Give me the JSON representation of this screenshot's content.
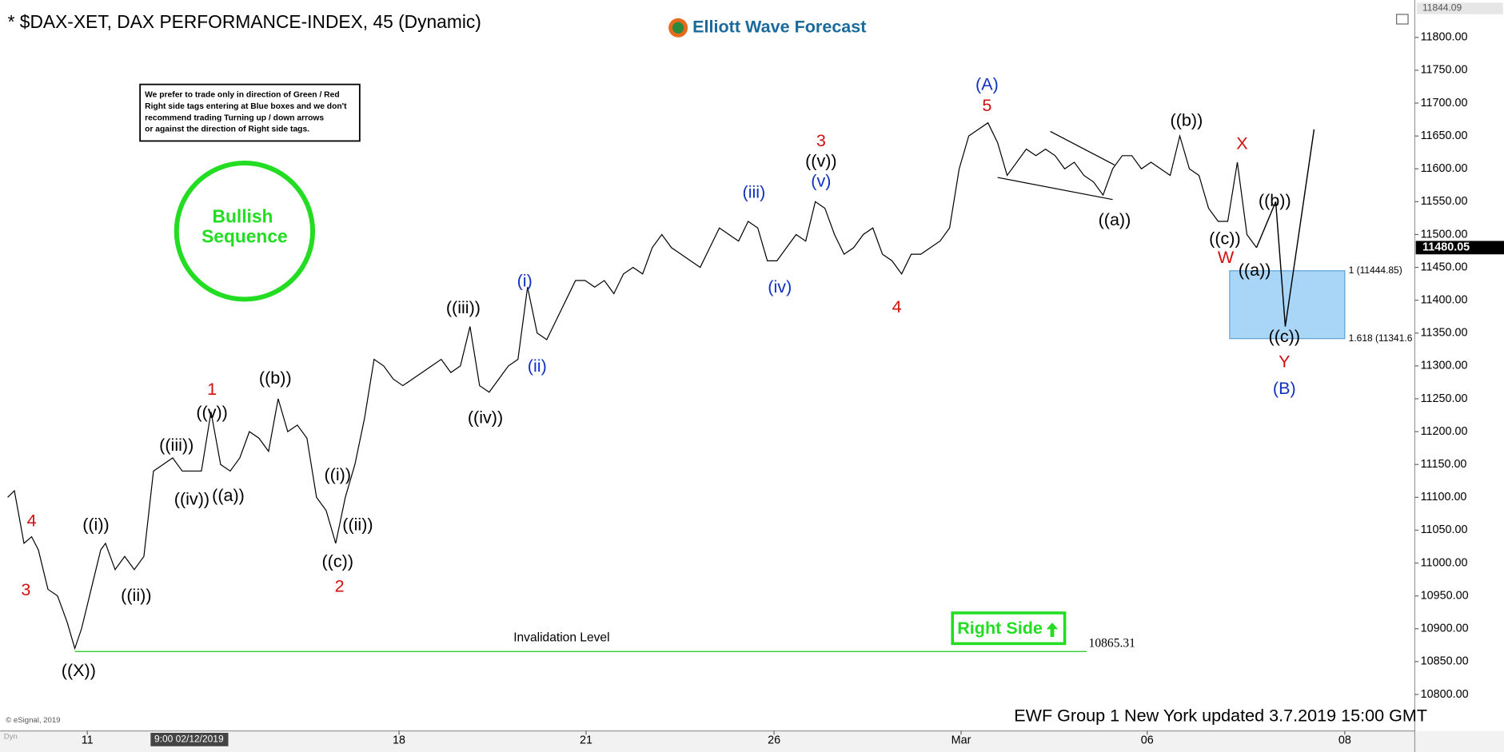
{
  "chart_data": {
    "type": "line",
    "title": "* $DAX-XET, DAX PERFORMANCE-INDEX, 45 (Dynamic)",
    "logo": "Elliott Wave Forecast",
    "note": [
      "We prefer to trade only in direction of Green / Red",
      "Right side tags entering at Blue boxes and we don't",
      "recommend trading Turning up / down arrows",
      "or against the direction of Right side tags."
    ],
    "badge": [
      "Bullish",
      "Sequence"
    ],
    "right_side": "Right Side",
    "footer": "EWF Group 1 New York updated 3.7.2019 15:00 GMT",
    "copyright": "© eSignal, 2019",
    "cursor_time": "9:00 02/12/2019",
    "mode": "Dyn",
    "color": "#000000",
    "x": [
      0.8,
      1.5,
      2.5,
      3.3,
      4,
      5,
      6,
      7,
      7.8,
      8.5,
      9.5,
      10.5,
      11,
      12,
      13,
      14,
      15,
      16,
      17,
      18,
      19,
      20,
      21,
      22,
      23,
      24,
      25,
      26,
      27,
      28,
      29,
      30,
      31,
      32,
      33,
      34,
      35,
      36,
      37,
      38,
      39,
      40,
      41,
      42,
      43,
      44,
      45,
      46,
      47,
      48,
      49,
      50,
      51,
      52,
      53,
      54,
      55,
      56,
      57,
      58,
      59,
      60,
      61,
      62,
      63,
      64,
      65,
      66,
      67,
      68,
      69,
      70,
      71,
      72,
      73,
      74,
      75,
      76,
      77,
      78,
      79,
      80,
      81,
      82,
      83,
      84,
      85,
      86,
      87,
      88,
      89,
      90,
      91,
      92,
      93,
      94,
      95,
      96,
      97,
      98,
      99,
      100,
      101,
      102,
      103,
      104,
      105,
      106,
      107,
      108,
      109,
      110,
      111,
      112,
      113,
      114,
      115,
      116,
      117,
      118,
      119,
      120,
      121,
      122,
      123,
      124,
      125,
      126,
      127,
      128,
      129,
      130,
      131
    ],
    "values": [
      11100,
      11110,
      11030,
      11040,
      11020,
      10960,
      10950,
      10910,
      10870,
      10900,
      10960,
      11020,
      11030,
      10990,
      11010,
      10990,
      11010,
      11140,
      11150,
      11160,
      11140,
      11140,
      11140,
      11230,
      11150,
      11140,
      11160,
      11200,
      11190,
      11170,
      11250,
      11200,
      11210,
      11190,
      11100,
      11080,
      11030,
      11100,
      11150,
      11220,
      11310,
      11300,
      11280,
      11270,
      11280,
      11290,
      11300,
      11310,
      11290,
      11300,
      11360,
      11270,
      11260,
      11280,
      11300,
      11310,
      11420,
      11350,
      11340,
      11370,
      11400,
      11430,
      11430,
      11420,
      11430,
      11410,
      11440,
      11450,
      11440,
      11480,
      11500,
      11480,
      11470,
      11460,
      11450,
      11480,
      11510,
      11500,
      11490,
      11520,
      11510,
      11460,
      11460,
      11480,
      11500,
      11490,
      11550,
      11540,
      11500,
      11470,
      11480,
      11500,
      11510,
      11470,
      11460,
      11440,
      11470,
      11470,
      11480,
      11490,
      11510,
      11600,
      11650,
      11660,
      11670,
      11640,
      11590,
      11610,
      11630,
      11620,
      11630,
      11620,
      11600,
      11610,
      11590,
      11580,
      11560,
      11600,
      11620,
      11620,
      11600,
      11610,
      11600,
      11590,
      11650,
      11600,
      11590,
      11540,
      11520,
      11520,
      11610,
      11500,
      11480
    ],
    "projection": {
      "x": [
        131,
        133,
        134,
        137
      ],
      "values": [
        11480,
        11550,
        11360,
        11660
      ]
    },
    "xlim": [
      0,
      147.5
    ],
    "ylim": [
      10750,
      11850
    ],
    "xticks": [
      {
        "value": 9.1,
        "label": "11"
      },
      {
        "value": 41.6,
        "label": "18"
      },
      {
        "value": 61.1,
        "label": "21"
      },
      {
        "value": 80.7,
        "label": "26"
      },
      {
        "value": 100.2,
        "label": "Mar"
      },
      {
        "value": 119.6,
        "label": "06"
      },
      {
        "value": 140.2,
        "label": "08"
      }
    ],
    "yticks": [
      {
        "value": 10800,
        "label": "10800.00"
      },
      {
        "value": 10850,
        "label": "10850.00"
      },
      {
        "value": 10900,
        "label": "10900.00"
      },
      {
        "value": 10950,
        "label": "10950.00"
      },
      {
        "value": 11000,
        "label": "11000.00"
      },
      {
        "value": 11050,
        "label": "11050.00"
      },
      {
        "value": 11100,
        "label": "11100.00"
      },
      {
        "value": 11150,
        "label": "11150.00"
      },
      {
        "value": 11200,
        "label": "11200.00"
      },
      {
        "value": 11250,
        "label": "11250.00"
      },
      {
        "value": 11300,
        "label": "11300.00"
      },
      {
        "value": 11350,
        "label": "11350.00"
      },
      {
        "value": 11400,
        "label": "11400.00"
      },
      {
        "value": 11450,
        "label": "11450.00"
      },
      {
        "value": 11500,
        "label": "11500.00"
      },
      {
        "value": 11550,
        "label": "11550.00"
      },
      {
        "value": 11600,
        "label": "11600.00"
      },
      {
        "value": 11650,
        "label": "11650.00"
      },
      {
        "value": 11700,
        "label": "11700.00"
      },
      {
        "value": 11750,
        "label": "11750.00"
      },
      {
        "value": 11800,
        "label": "11800.00"
      }
    ],
    "high_tag": 11844.09,
    "last_price": 11480.05,
    "invalidation": {
      "label": "Invalidation Level",
      "value": 10865.31,
      "xlim": [
        7.8,
        113.3
      ],
      "color": "#33cc33"
    },
    "target_box": {
      "xlim": [
        128.2,
        140.2
      ],
      "ylim": [
        11341.6,
        11444.85
      ],
      "color": "#a9d6f7",
      "labels": [
        {
          "value": 11444.85,
          "label": "1 (11444.85)"
        },
        {
          "value": 11341.6,
          "label": "1.618 (11341.6"
        }
      ]
    },
    "annotations": [
      {
        "text": "4",
        "x": 3.3,
        "y": 11063,
        "color": "#d01010"
      },
      {
        "text": "3",
        "x": 2.7,
        "y": 10958,
        "color": "#d01010"
      },
      {
        "text": "((X))",
        "x": 8.2,
        "y": 10835,
        "color": "#000000"
      },
      {
        "text": "((i))",
        "x": 10,
        "y": 11057,
        "color": "#000000"
      },
      {
        "text": "((ii))",
        "x": 14.2,
        "y": 10949,
        "color": "#000000"
      },
      {
        "text": "((iii))",
        "x": 18.4,
        "y": 11178,
        "color": "#000000"
      },
      {
        "text": "((iv))",
        "x": 20,
        "y": 11096,
        "color": "#000000"
      },
      {
        "text": "((a))",
        "x": 23.8,
        "y": 11101,
        "color": "#000000"
      },
      {
        "text": "((v))",
        "x": 22.1,
        "y": 11228,
        "color": "#000000"
      },
      {
        "text": "1",
        "x": 22.1,
        "y": 11263,
        "color": "#d01010"
      },
      {
        "text": "((b))",
        "x": 28.7,
        "y": 11280,
        "color": "#000000"
      },
      {
        "text": "((i))",
        "x": 35.2,
        "y": 11133,
        "color": "#000000"
      },
      {
        "text": "((ii))",
        "x": 37.3,
        "y": 11057,
        "color": "#000000"
      },
      {
        "text": "((c))",
        "x": 35.2,
        "y": 11001,
        "color": "#000000"
      },
      {
        "text": "2",
        "x": 35.4,
        "y": 10963,
        "color": "#d01010"
      },
      {
        "text": "((iii))",
        "x": 48.3,
        "y": 11387,
        "color": "#000000"
      },
      {
        "text": "((iv))",
        "x": 50.6,
        "y": 11220,
        "color": "#000000"
      },
      {
        "text": "(i)",
        "x": 54.7,
        "y": 11428,
        "color": "#1030c0"
      },
      {
        "text": "(ii)",
        "x": 56,
        "y": 11298,
        "color": "#1030c0"
      },
      {
        "text": "(iii)",
        "x": 78.6,
        "y": 11563,
        "color": "#1030c0"
      },
      {
        "text": "(iv)",
        "x": 81.3,
        "y": 11419,
        "color": "#1030c0"
      },
      {
        "text": "3",
        "x": 85.6,
        "y": 11641,
        "color": "#d01010"
      },
      {
        "text": "((v))",
        "x": 85.6,
        "y": 11610,
        "color": "#000000"
      },
      {
        "text": "(v)",
        "x": 85.6,
        "y": 11580,
        "color": "#1030c0"
      },
      {
        "text": "4",
        "x": 93.5,
        "y": 11388,
        "color": "#d01010"
      },
      {
        "text": "(A)",
        "x": 102.9,
        "y": 11727,
        "color": "#1030c0"
      },
      {
        "text": "5",
        "x": 102.9,
        "y": 11695,
        "color": "#d01010"
      },
      {
        "text": "((a))",
        "x": 116.2,
        "y": 11521,
        "color": "#000000"
      },
      {
        "text": "((b))",
        "x": 123.7,
        "y": 11672,
        "color": "#000000"
      },
      {
        "text": "X",
        "x": 129.5,
        "y": 11637,
        "color": "#d01010"
      },
      {
        "text": "((b))",
        "x": 132.9,
        "y": 11550,
        "color": "#000000"
      },
      {
        "text": "((c))",
        "x": 127.7,
        "y": 11492,
        "color": "#000000"
      },
      {
        "text": "W",
        "x": 127.8,
        "y": 11464,
        "color": "#d01010"
      },
      {
        "text": "((a))",
        "x": 130.8,
        "y": 11444,
        "color": "#000000"
      },
      {
        "text": "((c))",
        "x": 133.9,
        "y": 11343,
        "color": "#000000"
      },
      {
        "text": "Y",
        "x": 133.9,
        "y": 11305,
        "color": "#d01010"
      },
      {
        "text": "(B)",
        "x": 133.9,
        "y": 11264,
        "color": "#1030c0"
      }
    ]
  }
}
